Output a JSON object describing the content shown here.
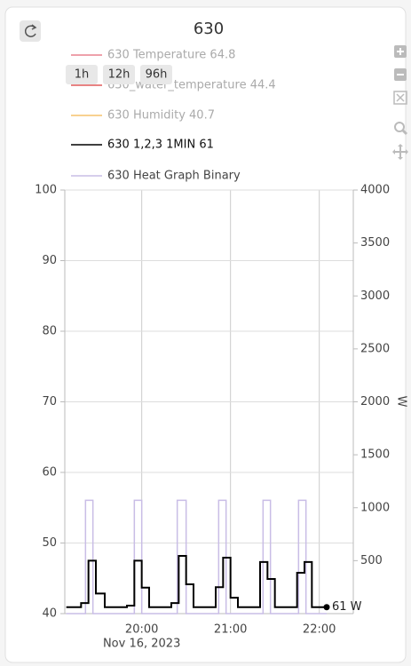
{
  "chart_data": {
    "type": "line",
    "title": "630",
    "buttons": [
      "1h",
      "12h",
      "96h"
    ],
    "x_date_label": "Nov 16, 2023",
    "y2_label": "W",
    "xlim": [
      "2023-11-16 19:08",
      "2023-11-16 22:23"
    ],
    "xticks": [
      {
        "value": "2023-11-16 20:00",
        "label": "20:00"
      },
      {
        "value": "2023-11-16 21:00",
        "label": "21:00"
      },
      {
        "value": "2023-11-16 22:00",
        "label": "22:00"
      }
    ],
    "ylim": [
      40,
      100
    ],
    "yticks": [
      40,
      50,
      60,
      70,
      80,
      90,
      100
    ],
    "y2lim": [
      0,
      4000
    ],
    "y2ticks": [
      500,
      1000,
      1500,
      2000,
      2500,
      3000,
      3500,
      4000
    ],
    "grid": true,
    "series": [
      {
        "name": "630 Temperature 64.8",
        "color": "#e8828f",
        "visible": false
      },
      {
        "name": "630_water_temperature 44.4",
        "color": "#e05a5a",
        "visible": false
      },
      {
        "name": "630 Humidity 40.7",
        "color": "#f5c26b",
        "visible": false
      },
      {
        "name": "630 1,2,3 1MIN 61",
        "color": "#000000",
        "axis": "y2",
        "step": true,
        "x": [
          "2023-11-16 19:09",
          "2023-11-16 19:19",
          "2023-11-16 19:24",
          "2023-11-16 19:29",
          "2023-11-16 19:35",
          "2023-11-16 19:50",
          "2023-11-16 19:55",
          "2023-11-16 20:00",
          "2023-11-16 20:05",
          "2023-11-16 20:20",
          "2023-11-16 20:25",
          "2023-11-16 20:30",
          "2023-11-16 20:35",
          "2023-11-16 20:50",
          "2023-11-16 20:55",
          "2023-11-16 21:00",
          "2023-11-16 21:05",
          "2023-11-16 21:20",
          "2023-11-16 21:25",
          "2023-11-16 21:30",
          "2023-11-16 21:45",
          "2023-11-16 21:50",
          "2023-11-16 21:55",
          "2023-11-16 22:05"
        ],
        "values": [
          61,
          100,
          500,
          190,
          61,
          75,
          500,
          245,
          61,
          100,
          545,
          277,
          61,
          250,
          528,
          150,
          61,
          487,
          327,
          61,
          386,
          487,
          61,
          61
        ],
        "value_labels": [
          null,
          null,
          null,
          null,
          null,
          null,
          null,
          null,
          null,
          null,
          null,
          null,
          null,
          null,
          null,
          null,
          null,
          null,
          null,
          null,
          null,
          null,
          null,
          "61 W"
        ]
      },
      {
        "name": "630 Heat Graph Binary",
        "color": "#c9bde6",
        "axis": "y2",
        "step": true,
        "x": [
          "2023-11-16 19:09",
          "2023-11-16 19:22",
          "2023-11-16 19:27",
          "2023-11-16 19:55",
          "2023-11-16 20:00",
          "2023-11-16 20:24",
          "2023-11-16 20:30",
          "2023-11-16 20:52",
          "2023-11-16 20:57",
          "2023-11-16 21:22",
          "2023-11-16 21:27",
          "2023-11-16 21:46",
          "2023-11-16 21:51",
          "2023-11-16 22:05"
        ],
        "values": [
          0,
          1070,
          0,
          1070,
          0,
          1070,
          0,
          1070,
          0,
          1070,
          0,
          1070,
          0,
          0
        ]
      }
    ]
  }
}
